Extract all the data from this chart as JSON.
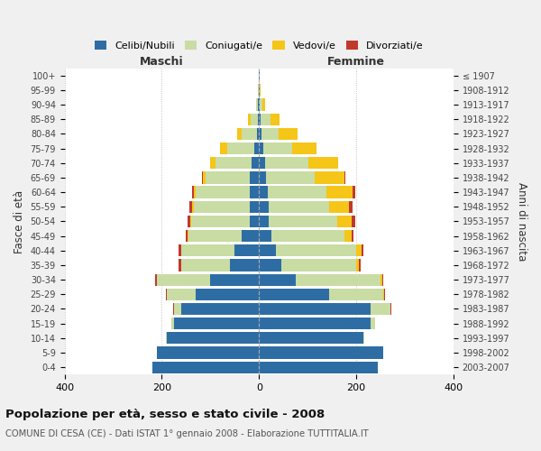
{
  "age_groups": [
    "0-4",
    "5-9",
    "10-14",
    "15-19",
    "20-24",
    "25-29",
    "30-34",
    "35-39",
    "40-44",
    "45-49",
    "50-54",
    "55-59",
    "60-64",
    "65-69",
    "70-74",
    "75-79",
    "80-84",
    "85-89",
    "90-94",
    "95-99",
    "100+"
  ],
  "birth_years": [
    "2003-2007",
    "1998-2002",
    "1993-1997",
    "1988-1992",
    "1983-1987",
    "1978-1982",
    "1973-1977",
    "1968-1972",
    "1963-1967",
    "1958-1962",
    "1953-1957",
    "1948-1952",
    "1943-1947",
    "1938-1942",
    "1933-1937",
    "1928-1932",
    "1923-1927",
    "1918-1922",
    "1913-1917",
    "1908-1912",
    "≤ 1907"
  ],
  "male": {
    "celibe": [
      220,
      210,
      190,
      175,
      160,
      130,
      100,
      60,
      50,
      35,
      20,
      20,
      20,
      20,
      15,
      10,
      5,
      3,
      2,
      1,
      1
    ],
    "coniugato": [
      0,
      1,
      2,
      5,
      15,
      60,
      110,
      100,
      110,
      110,
      120,
      115,
      110,
      90,
      75,
      55,
      30,
      15,
      4,
      1,
      0
    ],
    "vedovo": [
      0,
      0,
      0,
      0,
      0,
      0,
      0,
      1,
      1,
      2,
      2,
      3,
      5,
      5,
      10,
      15,
      10,
      5,
      1,
      0,
      0
    ],
    "divorziato": [
      0,
      0,
      0,
      0,
      1,
      2,
      3,
      4,
      5,
      4,
      5,
      5,
      3,
      2,
      0,
      0,
      0,
      0,
      0,
      0,
      0
    ]
  },
  "female": {
    "nubile": [
      245,
      255,
      215,
      230,
      230,
      145,
      75,
      45,
      35,
      25,
      20,
      20,
      18,
      15,
      12,
      8,
      5,
      3,
      2,
      1,
      1
    ],
    "coniugata": [
      0,
      1,
      2,
      8,
      40,
      110,
      175,
      155,
      165,
      150,
      140,
      125,
      120,
      100,
      90,
      60,
      35,
      20,
      5,
      1,
      0
    ],
    "vedova": [
      0,
      0,
      0,
      0,
      1,
      2,
      3,
      5,
      10,
      15,
      30,
      40,
      55,
      60,
      60,
      50,
      40,
      20,
      5,
      1,
      0
    ],
    "divorziata": [
      0,
      0,
      0,
      0,
      1,
      2,
      3,
      4,
      5,
      5,
      8,
      8,
      5,
      2,
      0,
      0,
      0,
      0,
      0,
      0,
      0
    ]
  },
  "colors": {
    "celibe": "#2E6DA4",
    "coniugato": "#C8DCA4",
    "vedovo": "#F5C518",
    "divorziato": "#C0392B"
  },
  "title": "Popolazione per età, sesso e stato civile - 2008",
  "subtitle": "COMUNE DI CESA (CE) - Dati ISTAT 1° gennaio 2008 - Elaborazione TUTTITALIA.IT",
  "xlabel_left": "Maschi",
  "xlabel_right": "Femmine",
  "ylabel_left": "Fasce di età",
  "ylabel_right": "Anni di nascita",
  "xlim": 400,
  "background_color": "#f0f0f0",
  "plot_background": "#ffffff"
}
